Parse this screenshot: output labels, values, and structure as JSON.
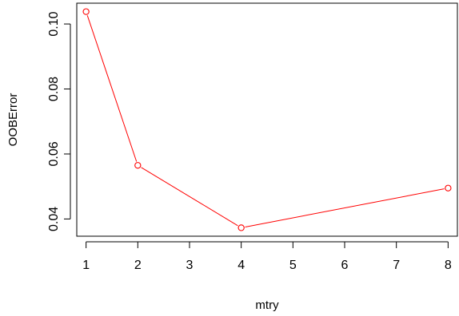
{
  "chart_data": {
    "type": "line",
    "title": "",
    "xlabel": "mtry",
    "ylabel": "OOBError",
    "x": [
      1,
      2,
      4,
      8
    ],
    "series": [
      {
        "values": [
          0.1038,
          0.0565,
          0.0373,
          0.0495
        ],
        "color": "#ff0000",
        "marker": "circle-open"
      }
    ],
    "x_ticks": [
      1,
      2,
      3,
      4,
      5,
      6,
      7,
      8
    ],
    "x_tick_labels": [
      "1",
      "2",
      "3",
      "4",
      "5",
      "6",
      "7",
      "8"
    ],
    "y_ticks": [
      0.04,
      0.06,
      0.08,
      0.1
    ],
    "y_tick_labels": [
      "0.04",
      "0.06",
      "0.08",
      "0.10"
    ],
    "xlim": [
      0.82,
      8.18
    ],
    "ylim": [
      0.0347,
      0.1064
    ],
    "grid": false,
    "legend": "none"
  }
}
